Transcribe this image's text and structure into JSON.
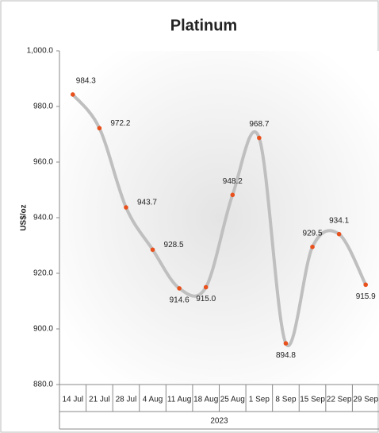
{
  "chart_data": {
    "type": "line",
    "title": "Platinum",
    "y_label": "US$/oz",
    "x_group": "2023",
    "categories": [
      "14 Jul",
      "21 Jul",
      "28 Jul",
      "4 Aug",
      "11 Aug",
      "18 Aug",
      "25 Aug",
      "1 Sep",
      "8 Sep",
      "15 Sep",
      "22 Sep",
      "29 Sep"
    ],
    "series": [
      {
        "name": "Platinum",
        "color": "#bfbfbf",
        "marker_color": "#e8501c",
        "values": [
          984.3,
          972.2,
          943.7,
          928.5,
          914.6,
          915.0,
          948.2,
          968.7,
          894.8,
          929.5,
          934.1,
          915.9
        ],
        "value_labels": [
          "984.3",
          "972.2",
          "943.7",
          "928.5",
          "914.6",
          "915.0",
          "948.2",
          "968.7",
          "894.8",
          "929.5",
          "934.1",
          "915.9"
        ]
      }
    ],
    "ylim": [
      880,
      1000
    ],
    "yticks": [
      {
        "value": 880,
        "label": "880.0"
      },
      {
        "value": 900,
        "label": "900.0"
      },
      {
        "value": 920,
        "label": "920.0"
      },
      {
        "value": 940,
        "label": "940.0"
      },
      {
        "value": 960,
        "label": "960.0"
      },
      {
        "value": 980,
        "label": "980.0"
      },
      {
        "value": 1000,
        "label": "1,000.0"
      }
    ],
    "grid": false
  }
}
